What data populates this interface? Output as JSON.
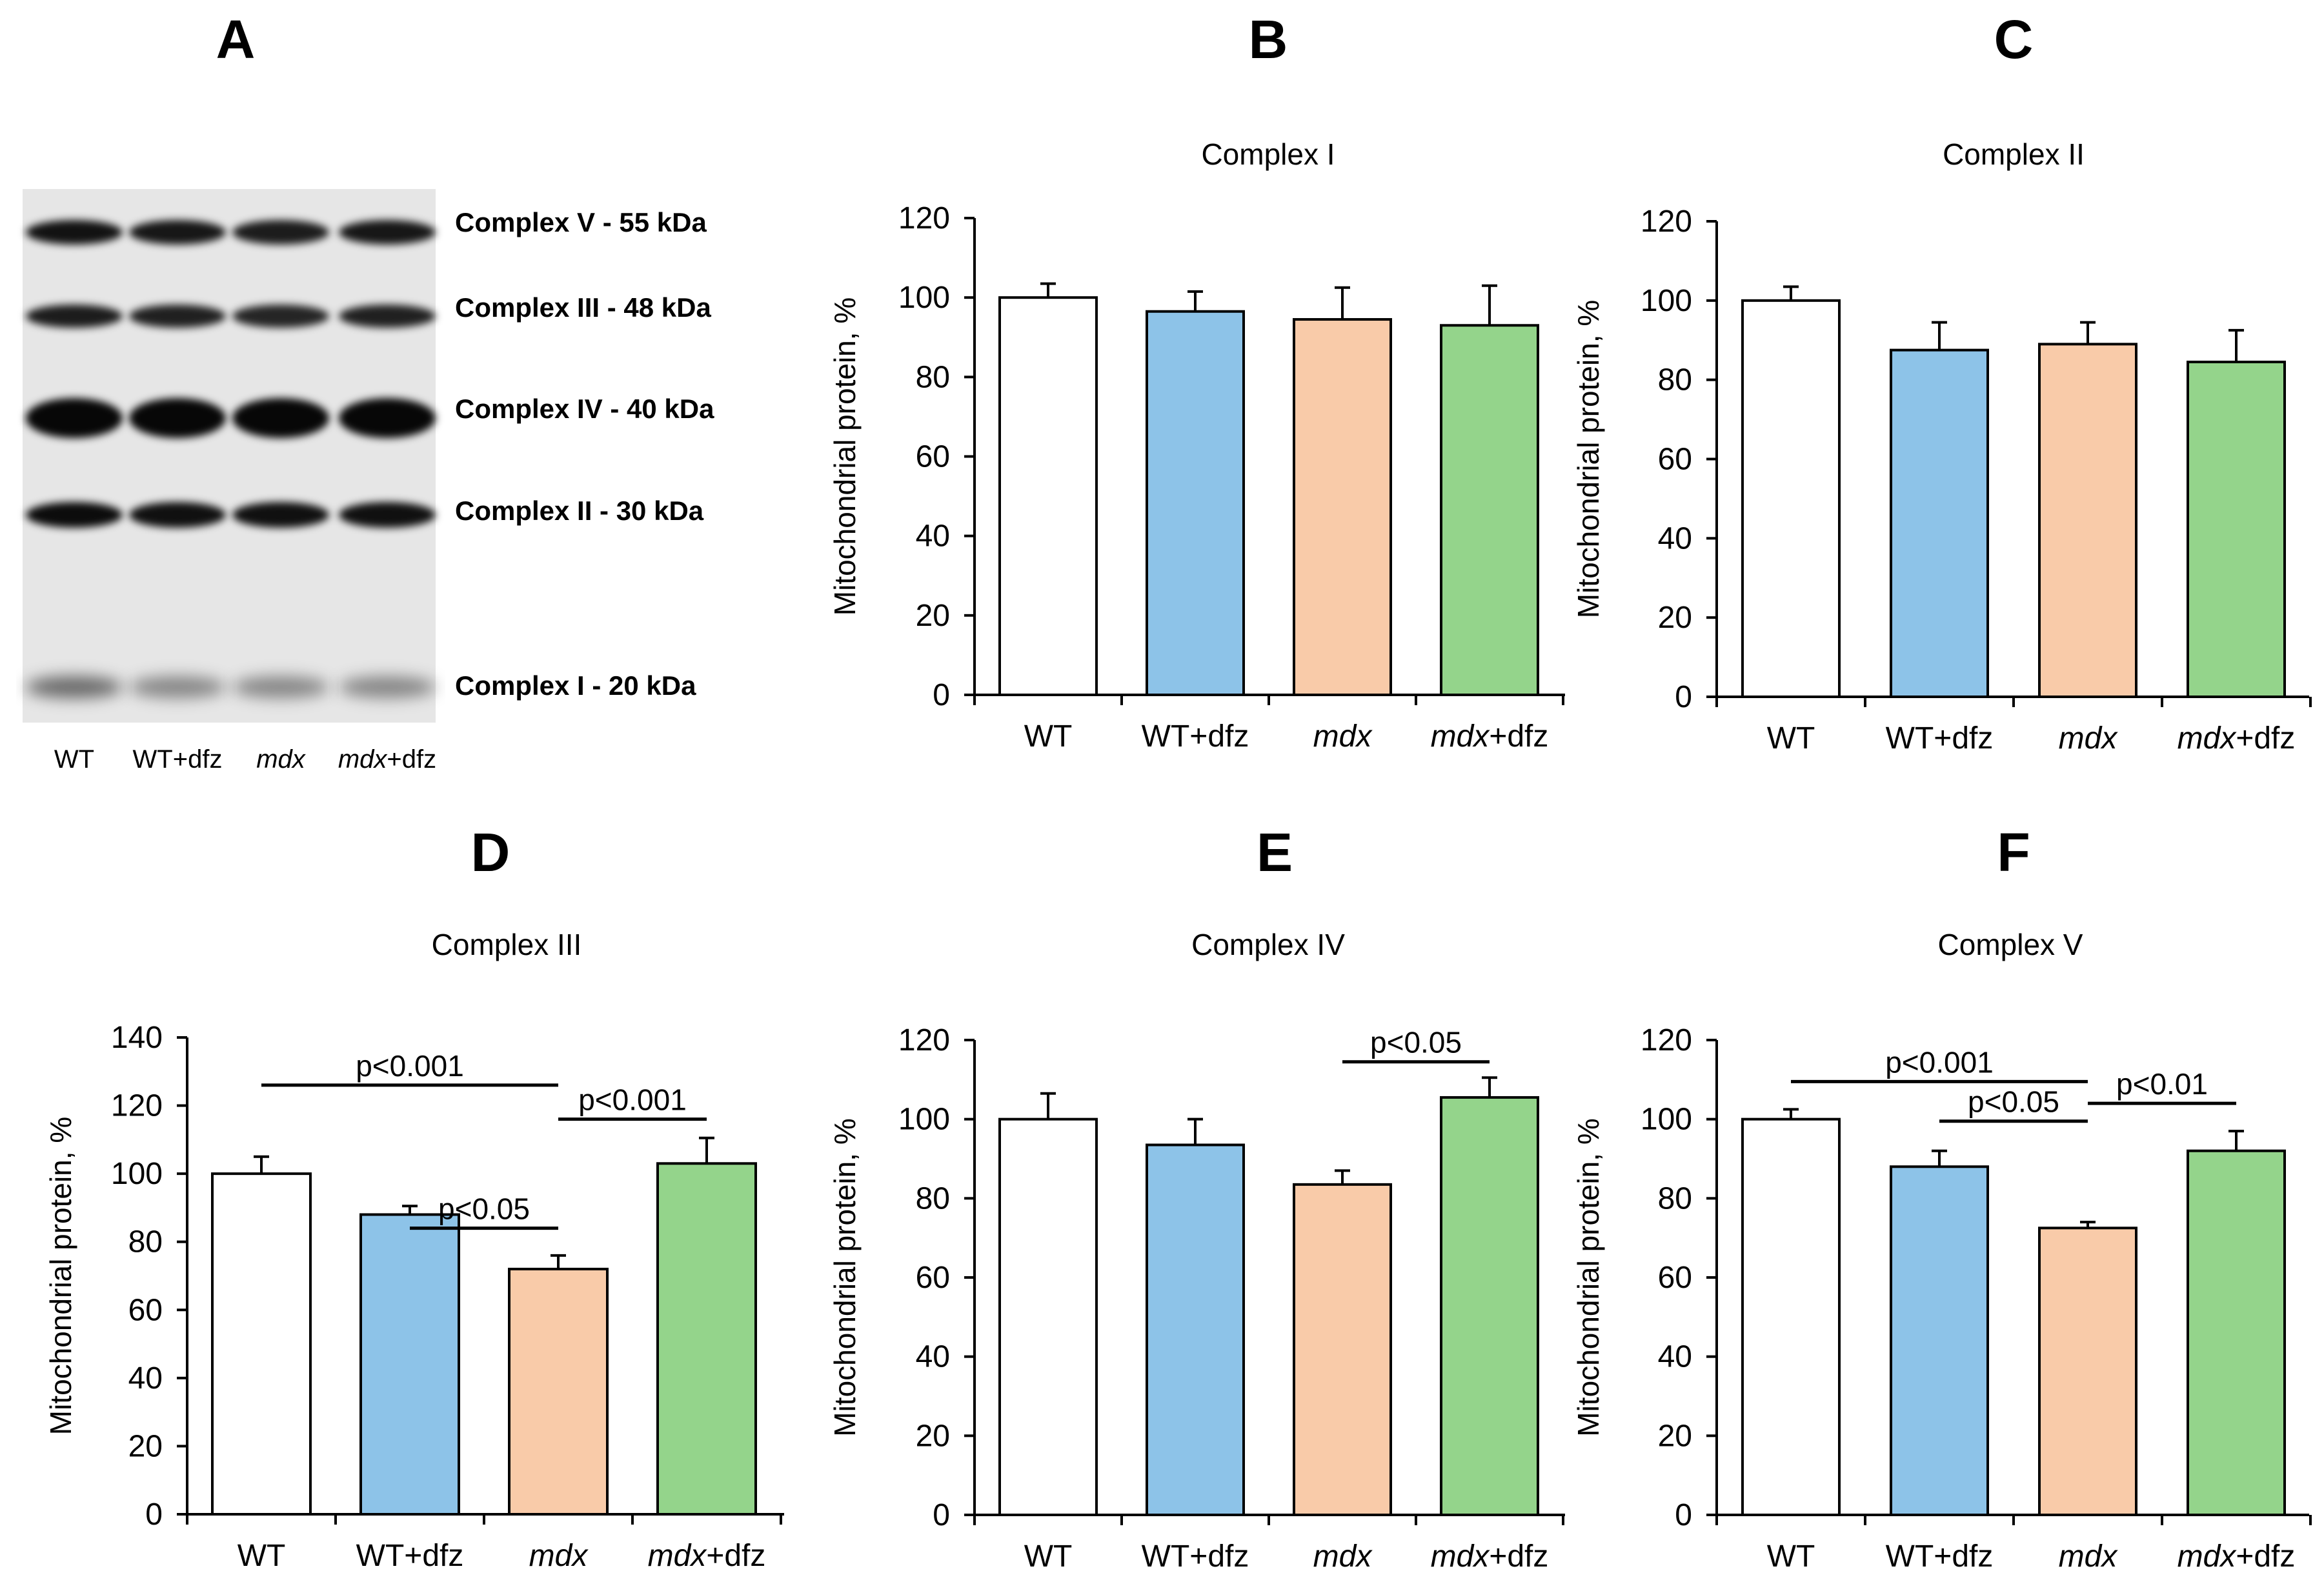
{
  "figure": {
    "blot": {
      "panel_label": "A",
      "bands": [
        "Complex V - 55 kDa",
        "Complex III - 48 kDa",
        "Complex IV - 40 kDa",
        "Complex II - 30 kDa",
        "Complex I - 20 kDa"
      ],
      "lanes": [
        {
          "name": "WT",
          "italic": ""
        },
        {
          "name": "WT+dfz",
          "italic": ""
        },
        {
          "name": "",
          "italic": "mdx"
        },
        {
          "name": "+dfz",
          "italic": "mdx"
        }
      ]
    }
  },
  "colors": {
    "WT": "#ffffff",
    "WT+dfz": "#8dc3e8",
    "mdx": "#f9cba9",
    "mdx+dfz": "#94d48b",
    "axis": "#000000"
  },
  "chart_data": [
    {
      "panel": "B",
      "type": "bar",
      "title": "Complex I",
      "ylabel": "Mitochondrial protein, %",
      "categories": [
        "WT",
        "WT+dfz",
        "mdx",
        "mdx+dfz"
      ],
      "values": [
        100,
        96.5,
        94.5,
        93
      ],
      "errors": [
        3.5,
        5,
        8,
        10
      ],
      "ylim": [
        0,
        120
      ],
      "yticks": [
        0,
        20,
        40,
        60,
        80,
        100,
        120
      ],
      "significance": []
    },
    {
      "panel": "C",
      "type": "bar",
      "title": "Complex II",
      "ylabel": "Mitochondrial protein, %",
      "categories": [
        "WT",
        "WT+dfz",
        "mdx",
        "mdx+dfz"
      ],
      "values": [
        100,
        87.5,
        89,
        84.5
      ],
      "errors": [
        3.5,
        7,
        5.5,
        8
      ],
      "ylim": [
        0,
        120
      ],
      "yticks": [
        0,
        20,
        40,
        60,
        80,
        100,
        120
      ],
      "significance": []
    },
    {
      "panel": "D",
      "type": "bar",
      "title": "Complex III",
      "ylabel": "Mitochondrial protein, %",
      "categories": [
        "WT",
        "WT+dfz",
        "mdx",
        "mdx+dfz"
      ],
      "values": [
        100,
        88,
        72,
        103
      ],
      "errors": [
        5,
        2.5,
        4,
        7.5
      ],
      "ylim": [
        0,
        140
      ],
      "yticks": [
        0,
        20,
        40,
        60,
        80,
        100,
        120,
        140
      ],
      "significance": [
        {
          "from": 0,
          "to": 2,
          "y": 126,
          "label": "p<0.001"
        },
        {
          "from": 1,
          "to": 2,
          "y": 84,
          "label": "p<0.05"
        },
        {
          "from": 2,
          "to": 3,
          "y": 116,
          "label": "p<0.001"
        }
      ]
    },
    {
      "panel": "E",
      "type": "bar",
      "title": "Complex IV",
      "ylabel": "Mitochondrial protein, %",
      "categories": [
        "WT",
        "WT+dfz",
        "mdx",
        "mdx+dfz"
      ],
      "values": [
        100,
        93.5,
        83.5,
        105.5
      ],
      "errors": [
        6.5,
        6.5,
        3.5,
        5
      ],
      "ylim": [
        0,
        120
      ],
      "yticks": [
        0,
        20,
        40,
        60,
        80,
        100,
        120
      ],
      "significance": [
        {
          "from": 2,
          "to": 3,
          "y": 114.5,
          "label": "p<0.05"
        }
      ]
    },
    {
      "panel": "F",
      "type": "bar",
      "title": "Complex V",
      "ylabel": "Mitochondrial protein, %",
      "categories": [
        "WT",
        "WT+dfz",
        "mdx",
        "mdx+dfz"
      ],
      "values": [
        100,
        88,
        72.5,
        92
      ],
      "errors": [
        2.5,
        4,
        1.5,
        5
      ],
      "ylim": [
        0,
        120
      ],
      "yticks": [
        0,
        20,
        40,
        60,
        80,
        100,
        120
      ],
      "significance": [
        {
          "from": 0,
          "to": 2,
          "y": 109.5,
          "label": "p<0.001"
        },
        {
          "from": 1,
          "to": 2,
          "y": 99.5,
          "label": "p<0.05"
        },
        {
          "from": 2,
          "to": 3,
          "y": 104,
          "label": "p<0.01"
        }
      ]
    }
  ]
}
